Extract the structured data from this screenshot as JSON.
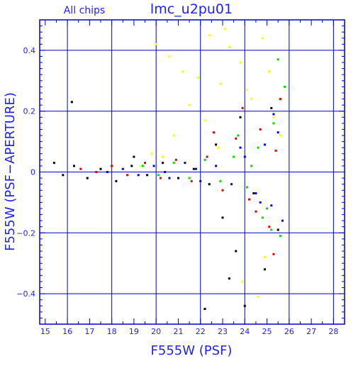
{
  "chart_data": {
    "type": "scatter",
    "title": "lmc_u2pu01",
    "subtitle": "All chips",
    "xlabel": "F555W (PSF)",
    "ylabel": "F555W (PSF−APERTURE)",
    "xlim": [
      14.75,
      28.5
    ],
    "ylim": [
      -0.5,
      0.5
    ],
    "x_ticks": [
      15,
      16,
      17,
      18,
      19,
      20,
      21,
      22,
      23,
      24,
      25,
      26,
      27,
      28
    ],
    "y_ticks": [
      -0.4,
      -0.2,
      0,
      0.2,
      0.4
    ],
    "y_tick_labels": [
      "−0.4",
      "−0.2",
      "0",
      "0.2",
      "0.4"
    ],
    "grid": true,
    "colors": {
      "frame": "#0000cc",
      "text": "#2222ee",
      "black_series": "#000000",
      "red_series": "#ee0000",
      "green_series": "#00dd00",
      "blue_series": "#0000ff",
      "yellow_series": "#ffff00"
    },
    "series": [
      {
        "color": "yellow",
        "points": [
          [
            20.0,
            0.42
          ],
          [
            20.6,
            0.38
          ],
          [
            21.2,
            0.33
          ],
          [
            21.9,
            0.31
          ],
          [
            22.4,
            0.45
          ],
          [
            22.9,
            0.29
          ],
          [
            23.3,
            0.41
          ],
          [
            23.8,
            0.36
          ],
          [
            24.3,
            0.24
          ],
          [
            24.8,
            0.44
          ],
          [
            25.3,
            0.18
          ],
          [
            19.8,
            0.06
          ],
          [
            19.3,
            0.02
          ],
          [
            23.9,
            -0.36
          ],
          [
            24.6,
            -0.41
          ],
          [
            20.8,
            0.12
          ],
          [
            22.2,
            0.17
          ],
          [
            24.1,
            0.27
          ],
          [
            25.1,
            0.33
          ],
          [
            21.5,
            0.22
          ],
          [
            23.1,
            0.47
          ],
          [
            25.6,
            0.12
          ],
          [
            22.8,
            0.08
          ],
          [
            24.9,
            -0.28
          ],
          [
            20.3,
            0.05
          ]
        ]
      },
      {
        "color": "black",
        "points": [
          [
            15.4,
            0.03
          ],
          [
            15.8,
            -0.01
          ],
          [
            16.3,
            0.02
          ],
          [
            16.9,
            -0.02
          ],
          [
            17.5,
            0.01
          ],
          [
            18.2,
            -0.03
          ],
          [
            18.9,
            0.02
          ],
          [
            19.6,
            -0.01
          ],
          [
            20.3,
            0.03
          ],
          [
            21.0,
            -0.02
          ],
          [
            21.7,
            0.01
          ],
          [
            22.4,
            -0.04
          ],
          [
            23.0,
            -0.15
          ],
          [
            23.3,
            -0.35
          ],
          [
            23.6,
            -0.26
          ],
          [
            24.0,
            -0.44
          ],
          [
            24.4,
            -0.07
          ],
          [
            24.9,
            -0.32
          ],
          [
            25.2,
            0.21
          ],
          [
            22.2,
            -0.45
          ],
          [
            16.2,
            0.23
          ],
          [
            19.0,
            0.05
          ],
          [
            22.7,
            0.09
          ],
          [
            23.8,
            0.18
          ],
          [
            25.5,
            -0.19
          ]
        ]
      },
      {
        "color": "red",
        "points": [
          [
            16.6,
            0.01
          ],
          [
            17.3,
            0.0
          ],
          [
            18.0,
            0.02
          ],
          [
            18.7,
            -0.01
          ],
          [
            19.5,
            0.03
          ],
          [
            20.2,
            -0.02
          ],
          [
            20.9,
            0.04
          ],
          [
            21.6,
            -0.03
          ],
          [
            22.3,
            0.05
          ],
          [
            23.0,
            -0.06
          ],
          [
            23.6,
            0.11
          ],
          [
            24.2,
            -0.09
          ],
          [
            24.7,
            0.14
          ],
          [
            25.1,
            -0.18
          ],
          [
            25.4,
            0.07
          ],
          [
            24.5,
            -0.13
          ],
          [
            23.9,
            0.21
          ],
          [
            25.3,
            -0.27
          ],
          [
            22.6,
            0.13
          ],
          [
            25.6,
            0.24
          ]
        ]
      },
      {
        "color": "green",
        "points": [
          [
            19.4,
            0.02
          ],
          [
            20.1,
            -0.01
          ],
          [
            20.8,
            0.03
          ],
          [
            21.5,
            -0.02
          ],
          [
            22.2,
            0.04
          ],
          [
            22.9,
            -0.03
          ],
          [
            23.5,
            0.05
          ],
          [
            24.1,
            -0.05
          ],
          [
            24.6,
            0.08
          ],
          [
            25.0,
            -0.12
          ],
          [
            25.3,
            0.16
          ],
          [
            25.6,
            -0.21
          ],
          [
            25.8,
            0.28
          ],
          [
            24.8,
            -0.15
          ],
          [
            25.5,
            0.37
          ],
          [
            23.7,
            0.12
          ],
          [
            25.2,
            -0.19
          ],
          [
            24.3,
            0.02
          ]
        ]
      },
      {
        "color": "blue",
        "points": [
          [
            17.8,
            0.0
          ],
          [
            18.5,
            0.01
          ],
          [
            19.2,
            -0.01
          ],
          [
            19.9,
            0.02
          ],
          [
            20.6,
            -0.02
          ],
          [
            21.3,
            0.03
          ],
          [
            22.0,
            -0.03
          ],
          [
            22.7,
            0.02
          ],
          [
            23.4,
            -0.04
          ],
          [
            24.0,
            0.05
          ],
          [
            24.5,
            -0.07
          ],
          [
            24.9,
            0.09
          ],
          [
            25.2,
            -0.11
          ],
          [
            25.5,
            0.13
          ],
          [
            25.7,
            -0.16
          ],
          [
            23.8,
            0.08
          ],
          [
            24.7,
            -0.1
          ],
          [
            25.3,
            0.19
          ],
          [
            21.8,
            0.01
          ],
          [
            20.4,
            0.0
          ]
        ]
      }
    ]
  }
}
